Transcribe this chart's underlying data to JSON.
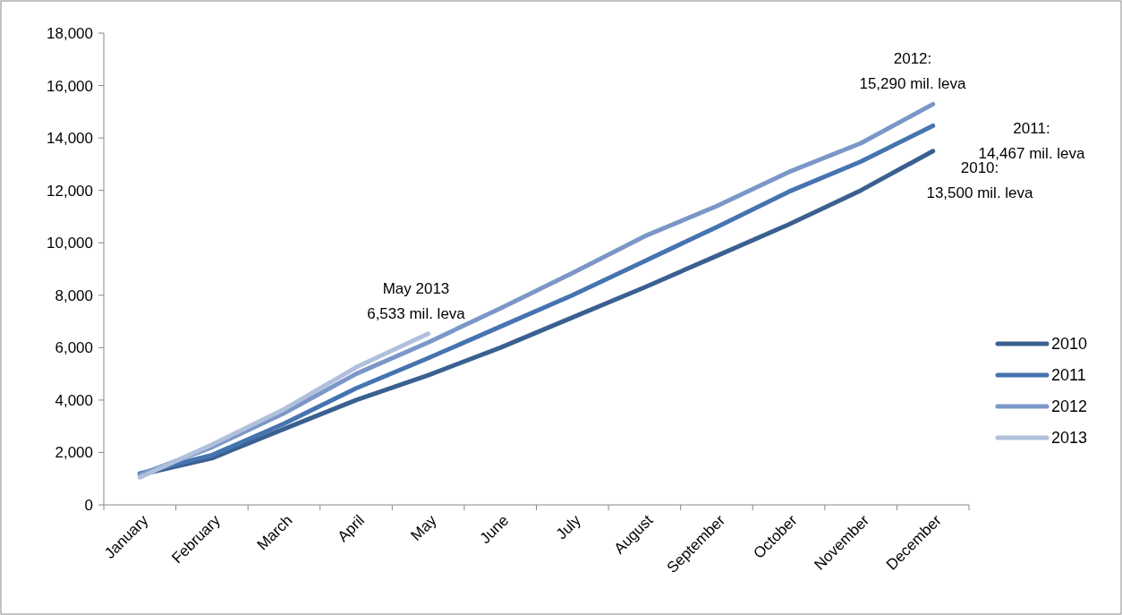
{
  "chart_data": {
    "type": "line",
    "categories": [
      "January",
      "February",
      "March",
      "April",
      "May",
      "June",
      "July",
      "August",
      "September",
      "October",
      "November",
      "December"
    ],
    "series": [
      {
        "name": "2010",
        "color": "#3a6090",
        "values": [
          1150,
          1780,
          2900,
          4000,
          4950,
          6000,
          7150,
          8300,
          9500,
          10700,
          12000,
          13500
        ]
      },
      {
        "name": "2011",
        "color": "#4574b0",
        "values": [
          1200,
          1900,
          3100,
          4450,
          5600,
          6800,
          8000,
          9300,
          10600,
          11950,
          13100,
          14467
        ]
      },
      {
        "name": "2012",
        "color": "#7b97c7",
        "values": [
          1150,
          2200,
          3500,
          5000,
          6200,
          7500,
          8850,
          10250,
          11400,
          12700,
          13800,
          15290
        ]
      },
      {
        "name": "2013",
        "color": "#b0c0dc",
        "values": [
          1050,
          2300,
          3650,
          5250,
          6533,
          null,
          null,
          null,
          null,
          null,
          null,
          null
        ]
      }
    ],
    "ylim": [
      0,
      18000
    ],
    "yticks": [
      {
        "value": 0,
        "label": "0"
      },
      {
        "value": 2000,
        "label": "2,000"
      },
      {
        "value": 4000,
        "label": "4,000"
      },
      {
        "value": 6000,
        "label": "6,000"
      },
      {
        "value": 8000,
        "label": "8,000"
      },
      {
        "value": 10000,
        "label": "10,000"
      },
      {
        "value": 12000,
        "label": "12,000"
      },
      {
        "value": 14000,
        "label": "14,000"
      },
      {
        "value": 16000,
        "label": "16,000"
      },
      {
        "value": 18000,
        "label": "18,000"
      }
    ],
    "grid": false,
    "legend": "right",
    "annotations": [
      "May 2013\n6,533 mil. leva",
      "2012:\n15,290 mil. leva",
      "2011:\n14,467 mil. leva",
      "2010:\n13,500 mil. leva"
    ]
  }
}
